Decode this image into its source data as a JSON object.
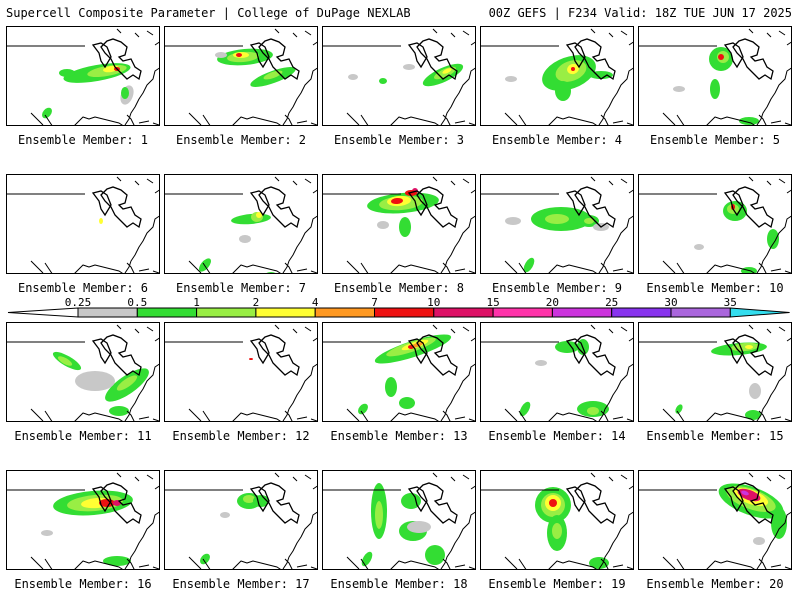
{
  "header": {
    "left": "Supercell Composite Parameter | College of DuPage NEXLAB",
    "right": "00Z GEFS | F234 Valid: 18Z TUE JUN 17 2025"
  },
  "colors": {
    "gray": "#c8c8c8",
    "green": "#33dd33",
    "lightgreen": "#99ee44",
    "yellow": "#ffff33",
    "orange": "#ff9922",
    "red": "#ee1111",
    "magenta": "#dd1166",
    "pink": "#ff33aa",
    "violet": "#cc33dd",
    "purple": "#8833ee",
    "lavender": "#aa66dd",
    "cyan": "#33ddee"
  },
  "colorbar": {
    "labels": [
      "0.25",
      "0.5",
      "1",
      "2",
      "4",
      "7",
      "10",
      "15",
      "20",
      "25",
      "30",
      "35"
    ],
    "segments": [
      "#c8c8c8",
      "#33dd33",
      "#99ee44",
      "#ffff33",
      "#ff9922",
      "#ee1111",
      "#dd1166",
      "#ff33aa",
      "#cc33dd",
      "#8833ee",
      "#aa66dd",
      "#33ddee"
    ]
  },
  "members": [
    {
      "label": "Ensemble Member: 1"
    },
    {
      "label": "Ensemble Member: 2"
    },
    {
      "label": "Ensemble Member: 3"
    },
    {
      "label": "Ensemble Member: 4"
    },
    {
      "label": "Ensemble Member: 5"
    },
    {
      "label": "Ensemble Member: 6"
    },
    {
      "label": "Ensemble Member: 7"
    },
    {
      "label": "Ensemble Member: 8"
    },
    {
      "label": "Ensemble Member: 9"
    },
    {
      "label": "Ensemble Member: 10"
    },
    {
      "label": "Ensemble Member: 11"
    },
    {
      "label": "Ensemble Member: 12"
    },
    {
      "label": "Ensemble Member: 13"
    },
    {
      "label": "Ensemble Member: 14"
    },
    {
      "label": "Ensemble Member: 15"
    },
    {
      "label": "Ensemble Member: 16"
    },
    {
      "label": "Ensemble Member: 17"
    },
    {
      "label": "Ensemble Member: 18"
    },
    {
      "label": "Ensemble Member: 19"
    },
    {
      "label": "Ensemble Member: 20"
    }
  ]
}
